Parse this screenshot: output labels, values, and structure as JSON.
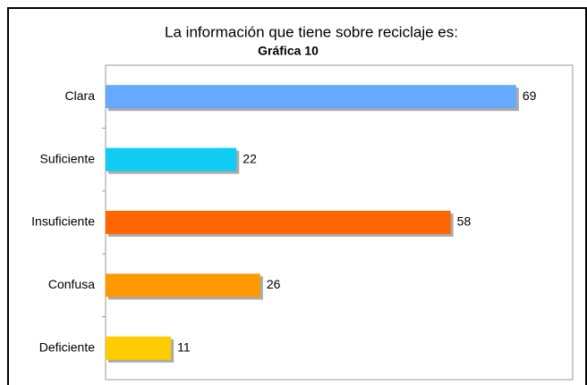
{
  "chart_data": {
    "type": "bar",
    "orientation": "horizontal",
    "title": "La información que tiene sobre reciclaje es:",
    "subtitle": "Gráfica 10",
    "categories": [
      "Clara",
      "Suficiente",
      "Insuficiente",
      "Confusa",
      "Deficiente"
    ],
    "values": [
      69,
      22,
      58,
      26,
      11
    ],
    "colors": [
      "#66aaff",
      "#11ccf2",
      "#ff6600",
      "#ff9900",
      "#ffcc00"
    ],
    "xlim": [
      0,
      78.5
    ]
  }
}
